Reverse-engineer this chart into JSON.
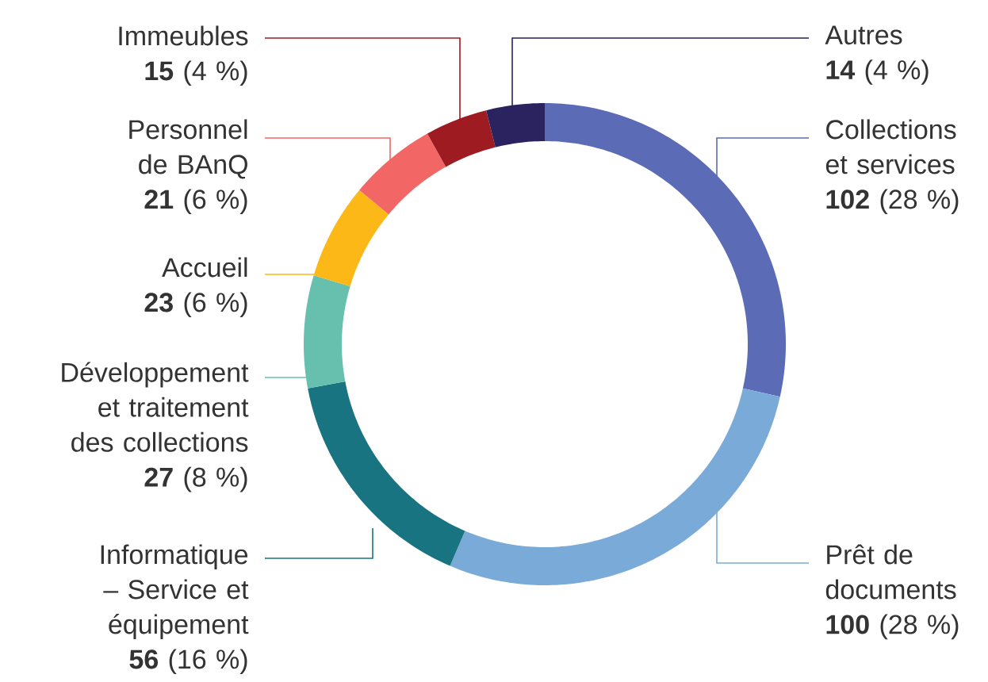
{
  "chart_data": {
    "type": "donut",
    "categories": [
      "Collections et services",
      "Prêt de documents",
      "Informatique – Service et équipement",
      "Développement et traitement des collections",
      "Accueil",
      "Personnel de BAnQ",
      "Immeubles",
      "Autres"
    ],
    "values": [
      102,
      100,
      56,
      27,
      23,
      21,
      15,
      14
    ],
    "colors": [
      "#5b6bb5",
      "#7aaad8",
      "#177480",
      "#66c0ad",
      "#fbb817",
      "#f26666",
      "#9e1b22",
      "#2b2260"
    ],
    "value_labels": [
      "**102** (28 %)",
      "**100** (28 %)",
      "**56** (16 %)",
      "**27** (8 %)",
      "**23** (6 %)",
      "**21** (6 %)",
      "**15** (4 %)",
      "**14** (4 %)"
    ]
  }
}
